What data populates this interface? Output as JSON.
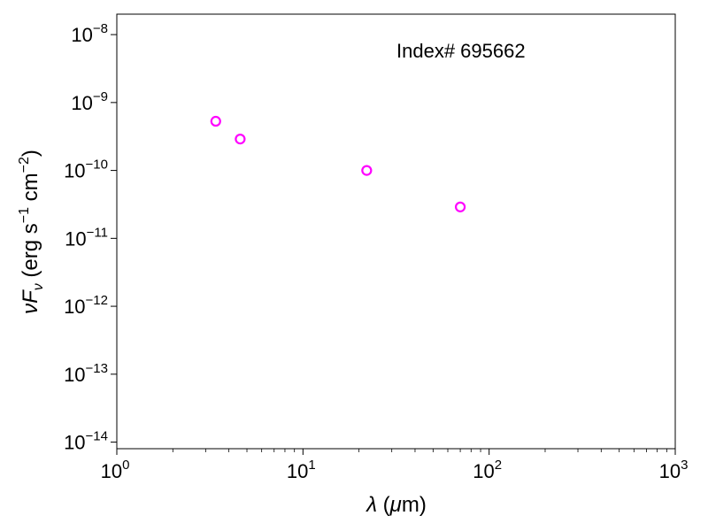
{
  "chart_data": {
    "type": "scatter",
    "annotation": "Index# 695662",
    "x_scale": "log",
    "y_scale": "log",
    "xlim": [
      1,
      1000
    ],
    "ylim": [
      8e-15,
      2e-08
    ],
    "x_ticks": [
      {
        "base": "10",
        "exp": "0",
        "value": 1
      },
      {
        "base": "10",
        "exp": "1",
        "value": 10
      },
      {
        "base": "10",
        "exp": "2",
        "value": 100
      },
      {
        "base": "10",
        "exp": "3",
        "value": 1000
      }
    ],
    "y_ticks": [
      {
        "base": "10",
        "exp": "−14",
        "value": 1e-14
      },
      {
        "base": "10",
        "exp": "−13",
        "value": 1e-13
      },
      {
        "base": "10",
        "exp": "−12",
        "value": 1e-12
      },
      {
        "base": "10",
        "exp": "−11",
        "value": 1e-11
      },
      {
        "base": "10",
        "exp": "−10",
        "value": 1e-10
      },
      {
        "base": "10",
        "exp": "−9",
        "value": 1e-09
      },
      {
        "base": "10",
        "exp": "−8",
        "value": 1e-08
      }
    ],
    "x_values": [
      3.4,
      4.6,
      22,
      70
    ],
    "y_values": [
      5.3e-10,
      2.9e-10,
      1e-10,
      2.9e-11
    ],
    "marker": "open-circle",
    "marker_color": "#ff00ff",
    "grid": false,
    "legend": "none"
  }
}
